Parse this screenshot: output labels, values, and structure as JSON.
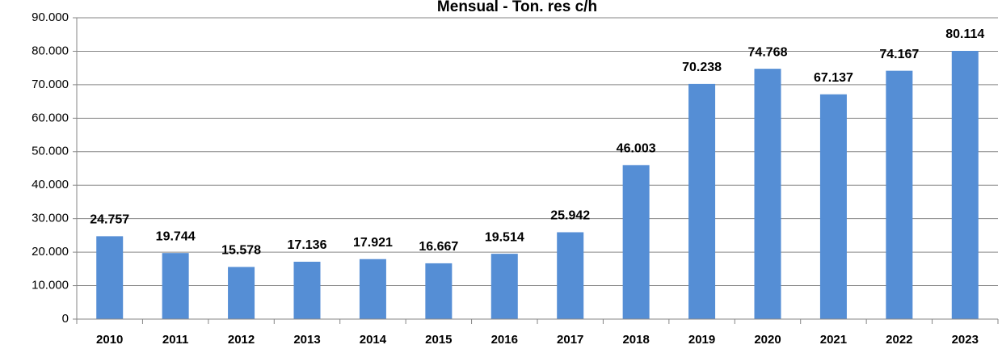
{
  "chart_data": {
    "type": "bar",
    "title": "Mensual - Ton. res c/h",
    "categories": [
      "2010",
      "2011",
      "2012",
      "2013",
      "2014",
      "2015",
      "2016",
      "2017",
      "2018",
      "2019",
      "2020",
      "2021",
      "2022",
      "2023"
    ],
    "values": [
      24757,
      19744,
      15578,
      17136,
      17921,
      16667,
      19514,
      25942,
      46003,
      70238,
      74768,
      67137,
      74167,
      80114
    ],
    "value_labels": [
      "24.757",
      "19.744",
      "15.578",
      "17.136",
      "17.921",
      "16.667",
      "19.514",
      "25.942",
      "46.003",
      "70.238",
      "74.768",
      "67.137",
      "74.167",
      "80.114"
    ],
    "color": "#558ed5",
    "ylim": [
      0,
      90000
    ],
    "yticks": [
      0,
      {
        "value": 10000,
        "label": "10.000"
      },
      {
        "value": 20000,
        "label": "20.000"
      },
      {
        "value": 30000,
        "label": "30.000"
      },
      {
        "value": 40000,
        "label": "40.000"
      },
      {
        "value": 50000,
        "label": "50.000"
      },
      {
        "value": 60000,
        "label": "60.000"
      },
      {
        "value": 70000,
        "label": "70.000"
      },
      {
        "value": 80000,
        "label": "80.000"
      },
      {
        "value": 90000,
        "label": "90.000"
      }
    ],
    "grid": true
  }
}
